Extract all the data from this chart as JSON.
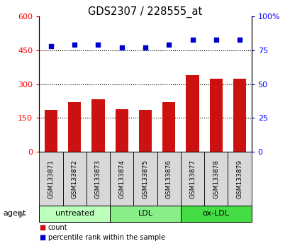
{
  "title": "GDS2307 / 228555_at",
  "samples": [
    "GSM133871",
    "GSM133872",
    "GSM133873",
    "GSM133874",
    "GSM133875",
    "GSM133876",
    "GSM133877",
    "GSM133878",
    "GSM133879"
  ],
  "bar_values": [
    185,
    220,
    232,
    188,
    185,
    220,
    340,
    325,
    325
  ],
  "percentile_values": [
    78,
    79,
    79,
    77,
    77,
    79,
    83,
    83,
    83
  ],
  "bar_color": "#cc1111",
  "point_color": "#0000cc",
  "left_ylim": [
    0,
    600
  ],
  "right_ylim": [
    0,
    100
  ],
  "left_yticks": [
    0,
    150,
    300,
    450,
    600
  ],
  "right_yticks": [
    0,
    25,
    50,
    75,
    100
  ],
  "right_yticklabels": [
    "0",
    "25",
    "50",
    "75",
    "100%"
  ],
  "grid_values": [
    150,
    300,
    450
  ],
  "groups": [
    {
      "label": "untreated",
      "start": 0,
      "end": 3,
      "color": "#bbffbb"
    },
    {
      "label": "LDL",
      "start": 3,
      "end": 6,
      "color": "#88ee88"
    },
    {
      "label": "ox-LDL",
      "start": 6,
      "end": 9,
      "color": "#44dd44"
    }
  ],
  "agent_label": "agent",
  "legend_bar_label": "count",
  "legend_point_label": "percentile rank within the sample",
  "sample_cell_color": "#d8d8d8",
  "plot_bg": "#ffffff"
}
